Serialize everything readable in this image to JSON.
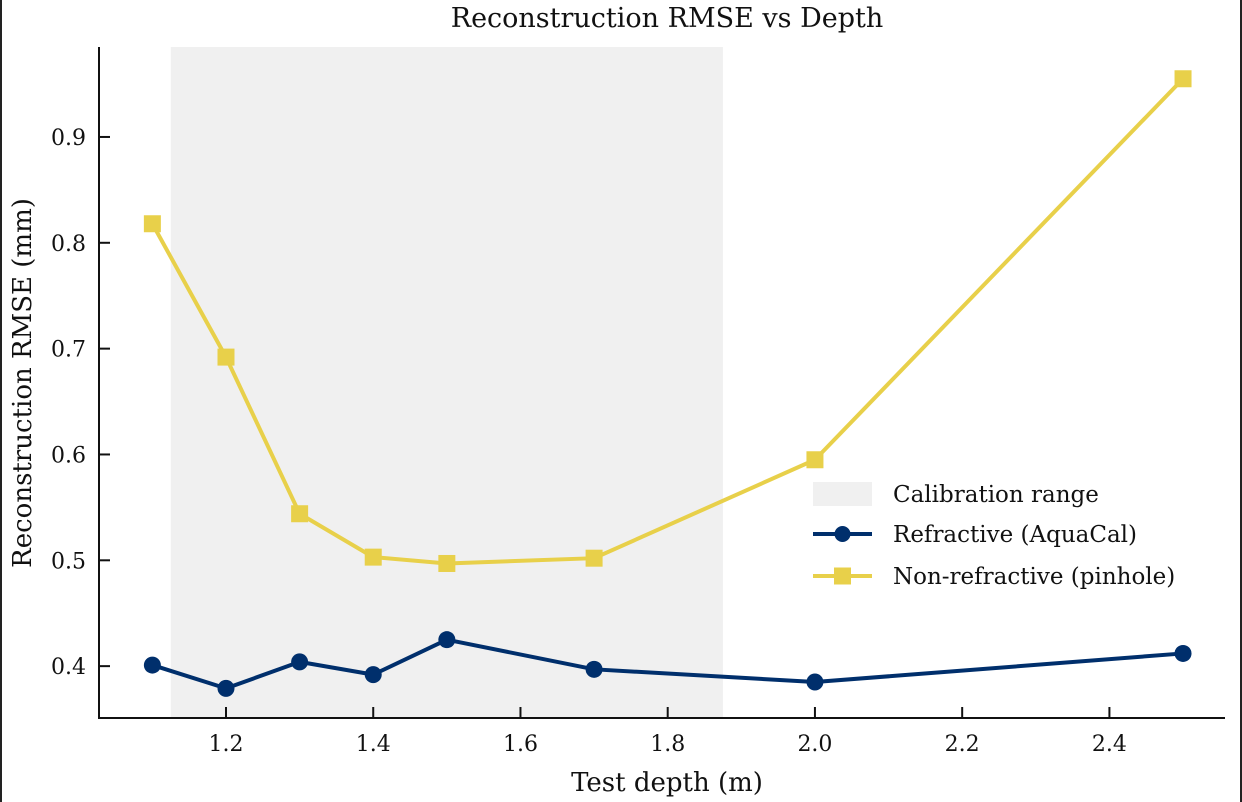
{
  "chart_data": {
    "type": "line",
    "title": "Reconstruction RMSE vs Depth",
    "xlabel": "Test depth (m)",
    "ylabel": "Reconstruction RMSE (mm)",
    "xlim": [
      1.0275,
      2.557
    ],
    "ylim": [
      0.351,
      0.985
    ],
    "xticks": [
      1.2,
      1.4,
      1.6,
      1.8,
      2.0,
      2.2,
      2.4
    ],
    "xtick_labels": [
      "1.2",
      "1.4",
      "1.6",
      "1.8",
      "2.0",
      "2.2",
      "2.4"
    ],
    "yticks": [
      0.4,
      0.5,
      0.6,
      0.7,
      0.8,
      0.9
    ],
    "ytick_labels": [
      "0.4",
      "0.5",
      "0.6",
      "0.7",
      "0.8",
      "0.9"
    ],
    "grid": false,
    "legend_position": "center-right",
    "shaded_region": {
      "name": "Calibration range",
      "x_start": 1.125,
      "x_end": 1.875,
      "color": "#f0f0f0"
    },
    "x": [
      1.1,
      1.2,
      1.3,
      1.4,
      1.5,
      1.7,
      2.0,
      2.5
    ],
    "series": [
      {
        "name": "Refractive (AquaCal)",
        "marker": "circle",
        "color": "#002f6c",
        "values": [
          0.401,
          0.379,
          0.404,
          0.392,
          0.425,
          0.397,
          0.385,
          0.412
        ]
      },
      {
        "name": "Non-refractive (pinhole)",
        "marker": "square",
        "color": "#e8d04a",
        "values": [
          0.818,
          0.692,
          0.544,
          0.503,
          0.497,
          0.502,
          0.595,
          0.955
        ]
      }
    ]
  }
}
